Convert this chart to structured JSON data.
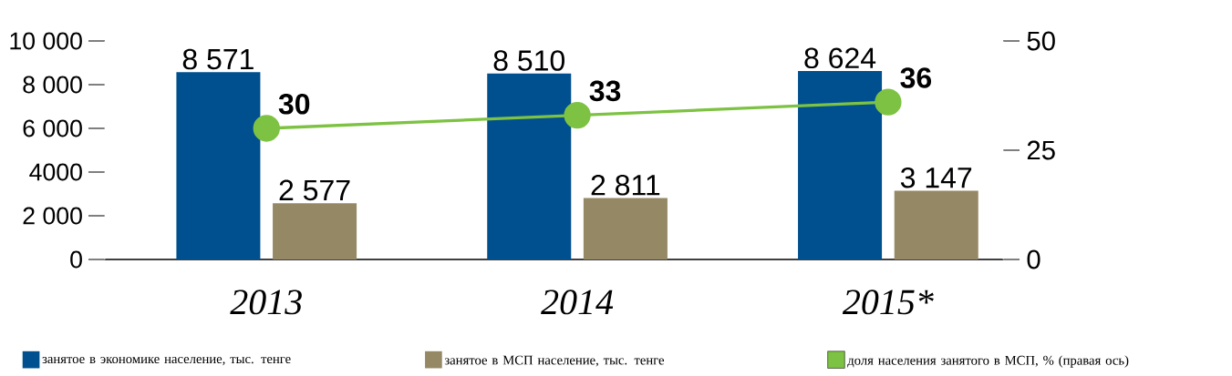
{
  "chart_data": {
    "type": "bar",
    "categories": [
      "2013",
      "2014",
      "2015*"
    ],
    "series": [
      {
        "name": "занятое в экономике население, тыс. тенге",
        "color": "#00508f",
        "values": [
          8571,
          8510,
          8624
        ],
        "value_labels": [
          "8 571",
          "8 510",
          "8 624"
        ]
      },
      {
        "name": "занятое в МСП население, тыс. тенге",
        "color": "#958865",
        "values": [
          2577,
          2811,
          3147
        ],
        "value_labels": [
          "2 577",
          "2 811",
          "3 147"
        ]
      },
      {
        "name": "доля населения занятого в МСП, % (правая ось)",
        "type": "line",
        "axis": "y2",
        "color": "#7dc242",
        "values": [
          30,
          33,
          36
        ],
        "value_labels": [
          "30",
          "33",
          "36"
        ]
      }
    ],
    "ylim": [
      0,
      10000
    ],
    "yticks": [
      0,
      {
        "value": 2000,
        "label": "2 000"
      },
      4000,
      {
        "value": 6000,
        "label": "6 000"
      },
      {
        "value": 8000,
        "label": "8 000"
      },
      {
        "value": 10000,
        "label": "10 000"
      }
    ],
    "y2lim": [
      0,
      50
    ],
    "y2ticks": [
      0,
      25,
      50
    ],
    "marker": "circle",
    "legend": "bottom"
  }
}
